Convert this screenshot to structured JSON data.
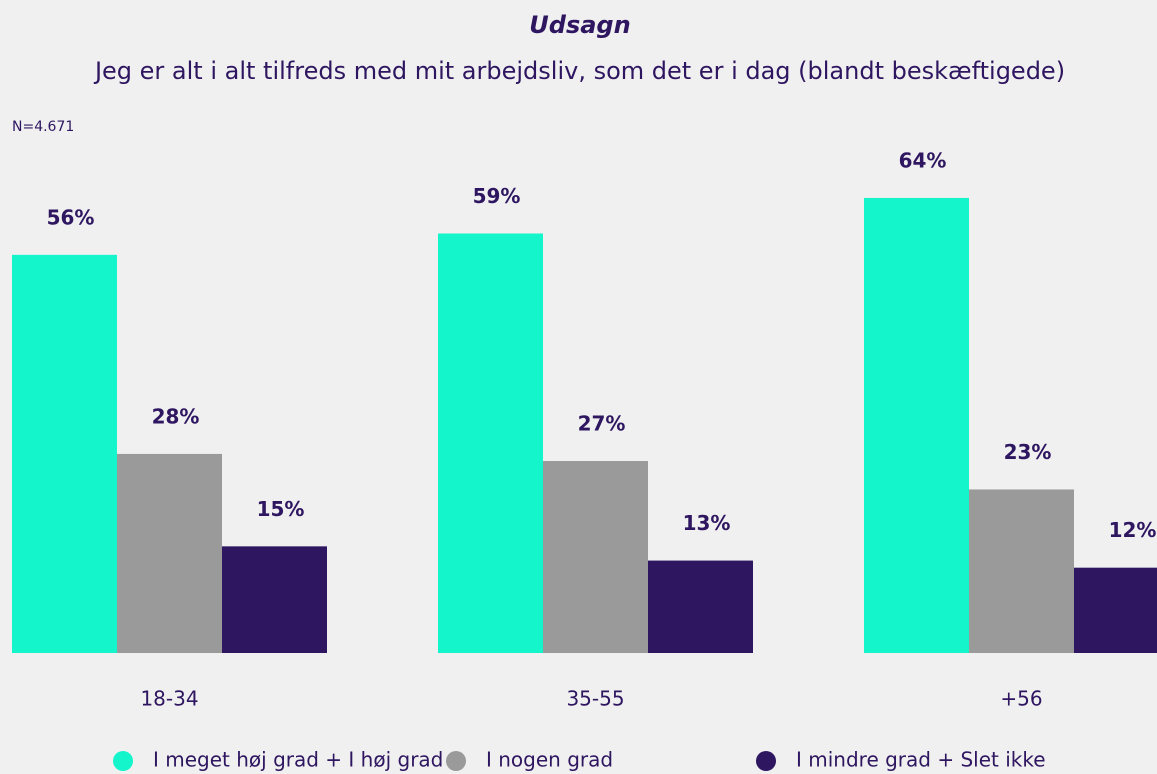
{
  "chart_data": {
    "type": "bar",
    "title": "Udsagn",
    "subtitle": "Jeg er alt i alt tilfreds med mit arbejdsliv, som det er i dag (blandt beskæftigede)",
    "annotation": "N=4.671",
    "categories": [
      "18-34",
      "35-55",
      "+56"
    ],
    "ylim": [
      0,
      100
    ],
    "series": [
      {
        "name": "I meget høj grad + I høj grad",
        "color": "#14f5cb",
        "values": [
          56,
          59,
          64
        ],
        "value_labels": [
          "56%",
          "59%",
          "64%"
        ]
      },
      {
        "name": "I nogen grad",
        "color": "#9a9a9a",
        "values": [
          28,
          27,
          23
        ],
        "value_labels": [
          "28%",
          "27%",
          "23%"
        ]
      },
      {
        "name": "I mindre grad + Slet ikke",
        "color": "#2e1660",
        "values": [
          15,
          13,
          12
        ],
        "value_labels": [
          "15%",
          "13%",
          "12%"
        ]
      }
    ],
    "legend": "bottom"
  }
}
